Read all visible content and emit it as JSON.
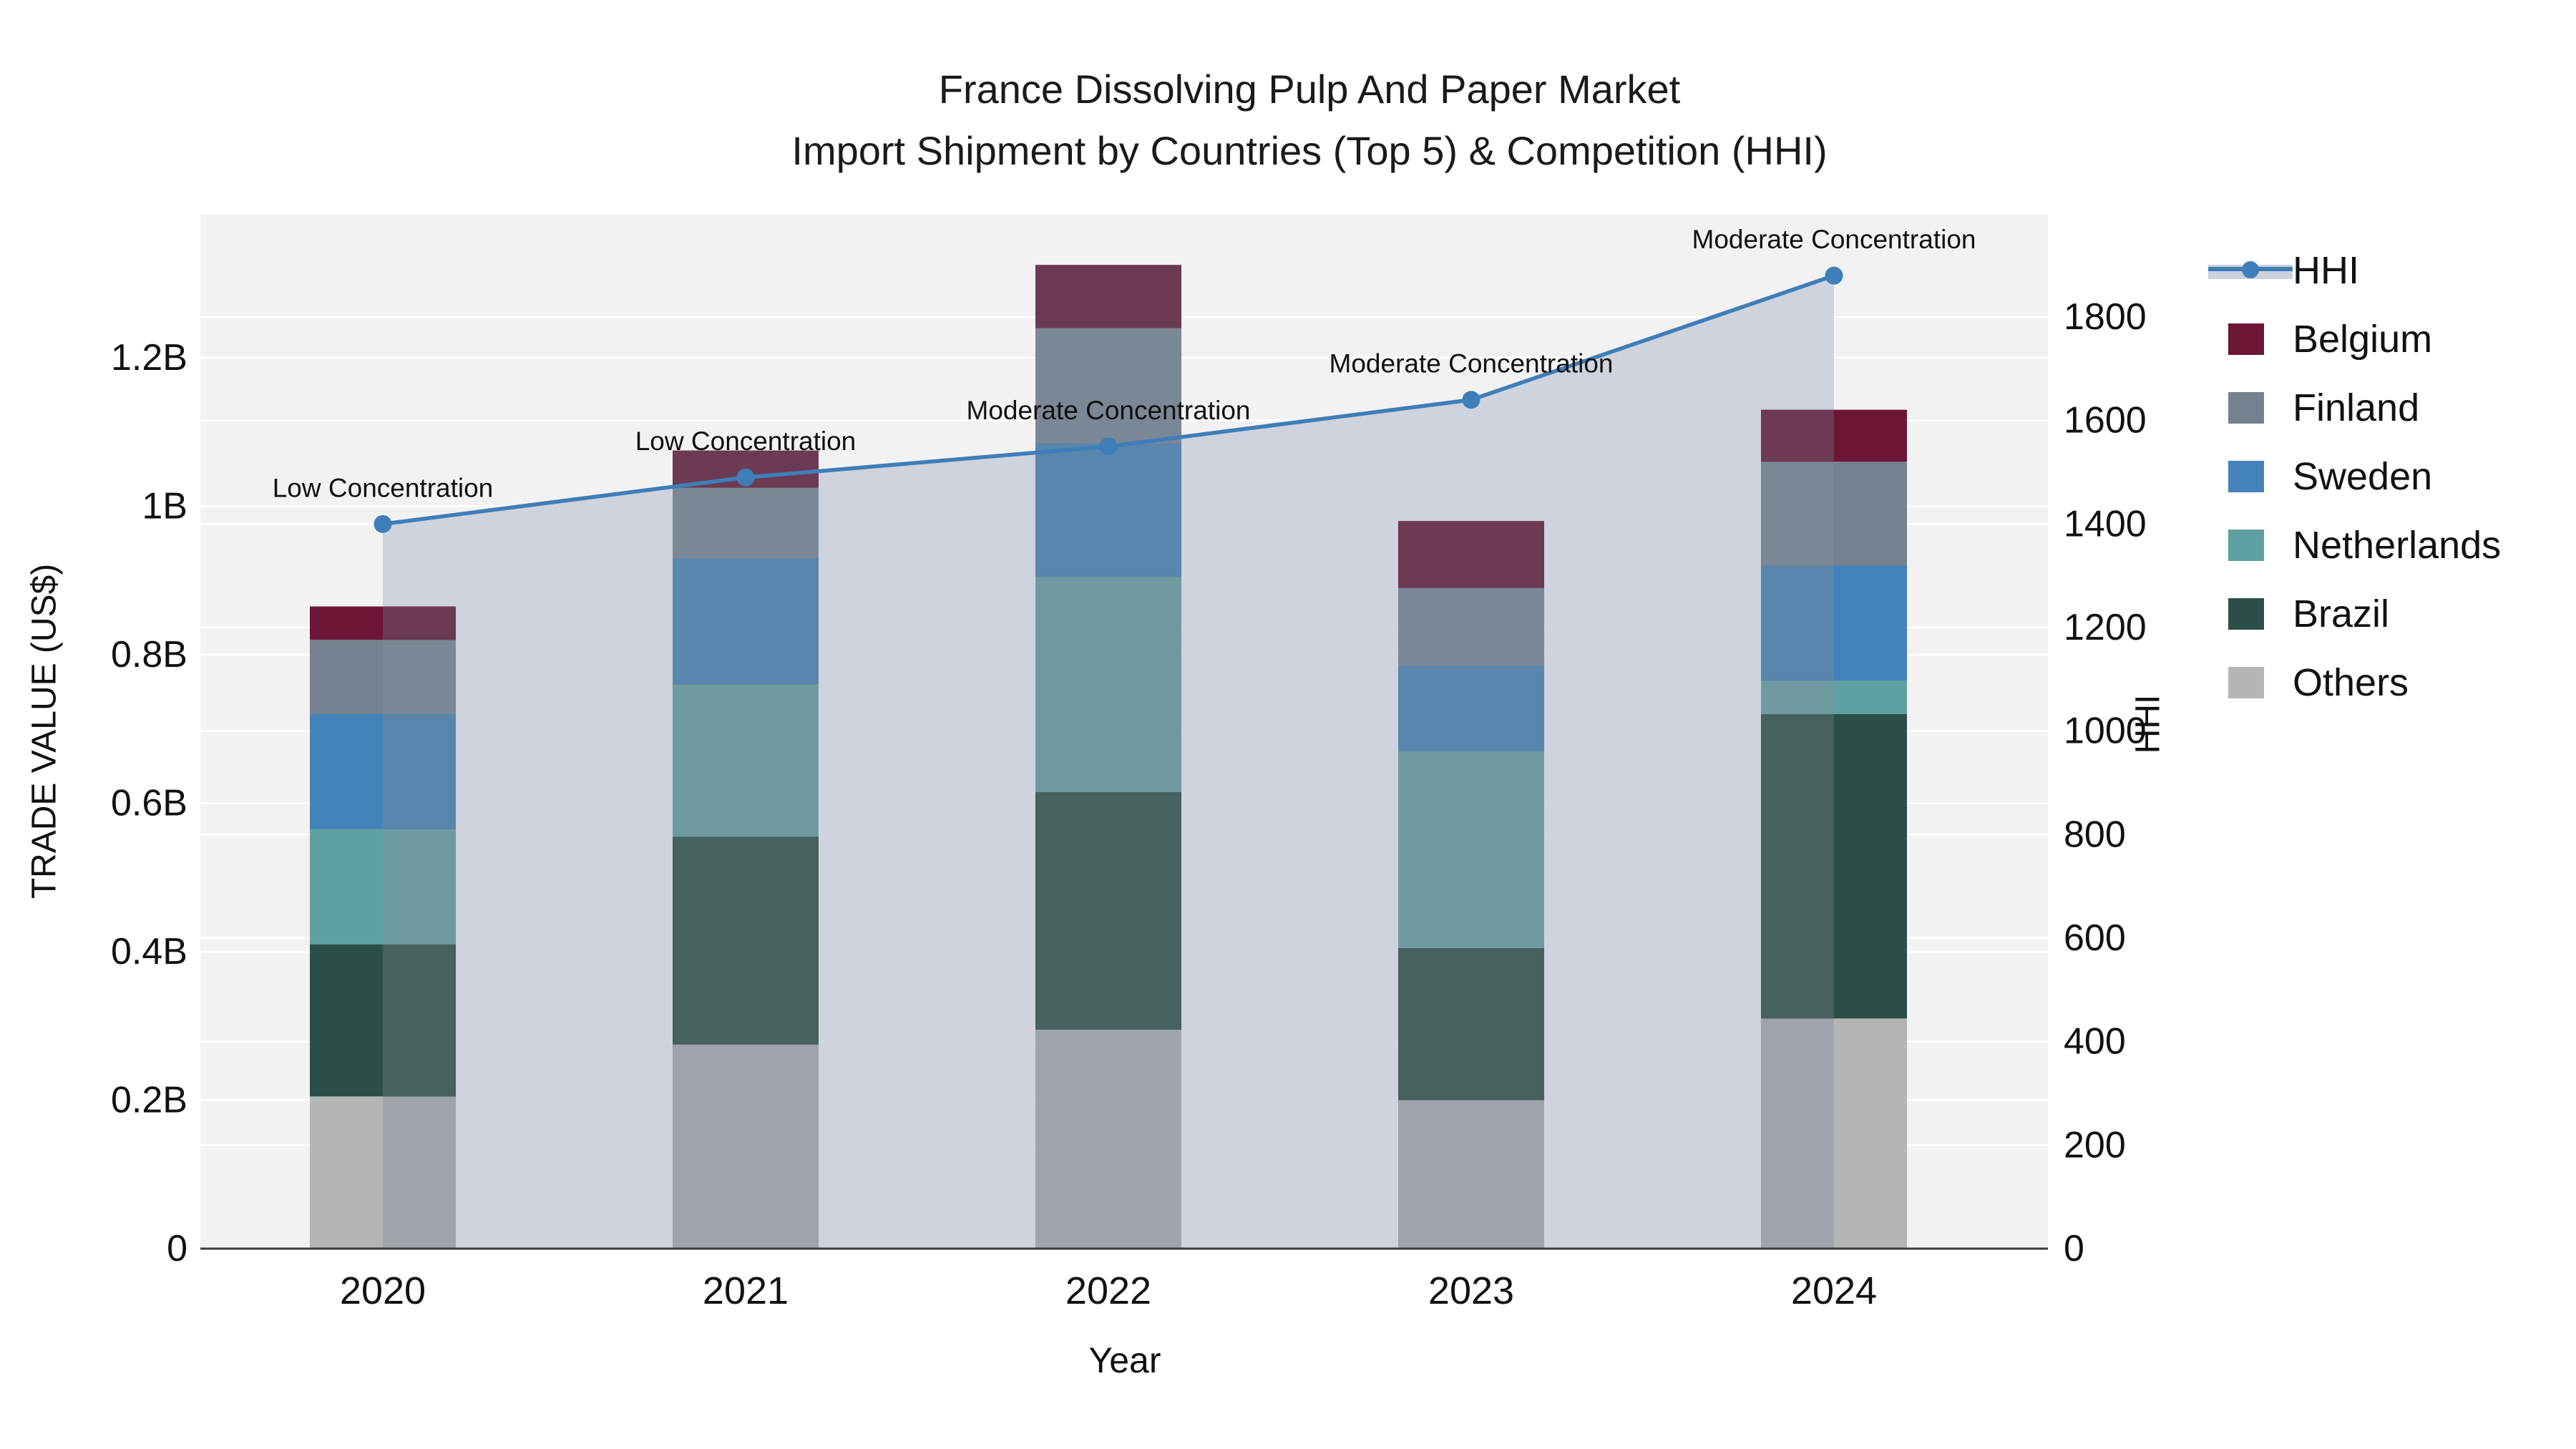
{
  "title": {
    "line1": "France Dissolving Pulp And Paper Market",
    "line2": "Import Shipment by Countries (Top 5) & Competition (HHI)"
  },
  "chart_data": {
    "type": "bar",
    "subtype": "stacked bars with overlaid line (dual axis)",
    "categories": [
      "2020",
      "2021",
      "2022",
      "2023",
      "2024"
    ],
    "series": [
      {
        "name": "Belgium",
        "color": "#6d1638",
        "muted_color": "#6c3a53",
        "values": [
          0.045,
          0.05,
          0.085,
          0.09,
          0.07
        ]
      },
      {
        "name": "Finland",
        "color": "#75818f",
        "muted_color": "#7b8794",
        "values": [
          0.1,
          0.095,
          0.155,
          0.105,
          0.14
        ]
      },
      {
        "name": "Sweden",
        "color": "#4483ba",
        "muted_color": "#5886ad",
        "values": [
          0.155,
          0.17,
          0.18,
          0.115,
          0.155
        ]
      },
      {
        "name": "Netherlands",
        "color": "#5fa0a2",
        "muted_color": "#6f9ba0",
        "values": [
          0.155,
          0.205,
          0.29,
          0.265,
          0.045
        ]
      },
      {
        "name": "Brazil",
        "color": "#2c4e48",
        "muted_color": "#46615e",
        "values": [
          0.205,
          0.28,
          0.32,
          0.205,
          0.41
        ]
      },
      {
        "name": "Others",
        "color": "#b3b5b6",
        "muted_color": "#9fa3ab",
        "values": [
          0.205,
          0.275,
          0.295,
          0.2,
          0.31
        ]
      }
    ],
    "stack_order_bottom_to_top": [
      "Others",
      "Brazil",
      "Netherlands",
      "Sweden",
      "Finland",
      "Belgium"
    ],
    "line_series": {
      "name": "HHI",
      "color": "#3e7eb9",
      "area_fill_color": "#ccd1db",
      "values": [
        1400,
        1490,
        1550,
        1640,
        1880
      ]
    },
    "annotations": [
      "Low Concentration",
      "Low Concentration",
      "Moderate Concentration",
      "Moderate Concentration",
      "Moderate Concentration"
    ],
    "xlabel": "Year",
    "y_left": {
      "title": "TRADE VALUE (US$)",
      "ticks": [
        "0",
        "0.2B",
        "0.4B",
        "0.6B",
        "0.8B",
        "1B",
        "1.2B"
      ],
      "tick_values": [
        0,
        0.2,
        0.4,
        0.6,
        0.8,
        1.0,
        1.2
      ],
      "range": [
        0,
        1.393
      ],
      "grid": true
    },
    "y_right": {
      "title": "HHI",
      "ticks": [
        "0",
        "200",
        "400",
        "600",
        "800",
        "1000",
        "1200",
        "1400",
        "1600",
        "1800"
      ],
      "tick_values": [
        0,
        200,
        400,
        600,
        800,
        1000,
        1200,
        1400,
        1600,
        1800
      ],
      "range": [
        0,
        2000
      ],
      "grid": true
    },
    "legend_order": [
      "HHI",
      "Belgium",
      "Finland",
      "Sweden",
      "Netherlands",
      "Brazil",
      "Others"
    ],
    "legend_position": "right"
  },
  "colors": {
    "plot_bg": "#f2f2f3",
    "grid": "#ffffff",
    "axis_line": "#3b3b3b",
    "text": "#111111"
  }
}
